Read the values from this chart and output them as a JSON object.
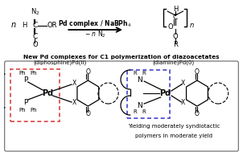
{
  "bg_color": "#ffffff",
  "reaction_arrow_text_top": "Pd complex / NaBPh$_4$",
  "reaction_arrow_text_bottom": "$-$ $n$ N$_2$",
  "main_label": "New Pd complexes for C1 polymerization of diazoacetates",
  "label_left": "(diphosphine)Pd(II)",
  "label_right": "(diamine)Pd(0)",
  "bottom_text_line1": "Yielding moderately syndiotactic",
  "bottom_text_line2": "polymers in moderate yield",
  "red_box_color": "#dd4444",
  "blue_box_color": "#4444cc",
  "outer_box_color": "#666666",
  "fig_width": 3.02,
  "fig_height": 1.89,
  "dpi": 100
}
